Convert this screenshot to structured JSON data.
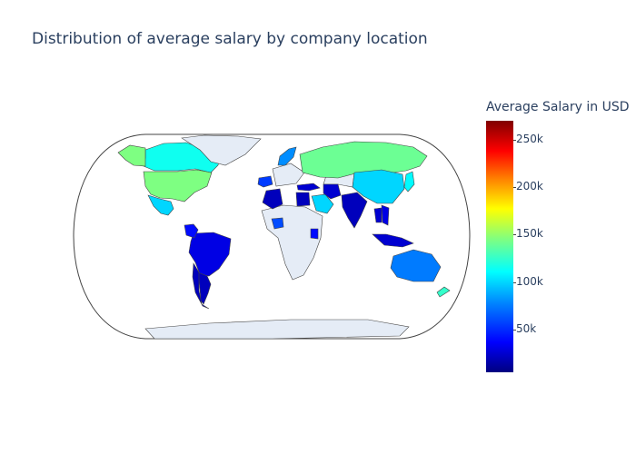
{
  "title": "Distribution of average salary by company location",
  "colorbar": {
    "title": "Average Salary in USD",
    "ticks": [
      {
        "label": "250k",
        "value": 250000
      },
      {
        "label": "200k",
        "value": 200000
      },
      {
        "label": "150k",
        "value": 150000
      },
      {
        "label": "100k",
        "value": 100000
      },
      {
        "label": "50k",
        "value": 50000
      }
    ],
    "range": [
      5000,
      270000
    ]
  },
  "chart_data": {
    "type": "choropleth",
    "title": "Distribution of average salary by company location",
    "colorbar_title": "Average Salary in USD",
    "colorscale": "jet",
    "projection": "natural earth",
    "no_data_color": "#e5ecf6",
    "regions": [
      {
        "name": "United States",
        "value": 145000
      },
      {
        "name": "Canada",
        "value": 115000
      },
      {
        "name": "Mexico",
        "value": 100000
      },
      {
        "name": "Alaska",
        "value": 145000
      },
      {
        "name": "Greenland",
        "value": null
      },
      {
        "name": "Brazil",
        "value": 30000
      },
      {
        "name": "Argentina",
        "value": 20000
      },
      {
        "name": "Chile",
        "value": 20000
      },
      {
        "name": "Colombia",
        "value": 40000
      },
      {
        "name": "Russia",
        "value": 140000
      },
      {
        "name": "China",
        "value": 100000
      },
      {
        "name": "India",
        "value": 20000
      },
      {
        "name": "Australia",
        "value": 75000
      },
      {
        "name": "New Zealand",
        "value": 125000
      },
      {
        "name": "Japan",
        "value": 110000
      },
      {
        "name": "Indonesia",
        "value": 25000
      },
      {
        "name": "Saudi Arabia",
        "value": 100000
      },
      {
        "name": "Iran",
        "value": 25000
      },
      {
        "name": "Egypt",
        "value": 20000
      },
      {
        "name": "Nigeria",
        "value": 60000
      },
      {
        "name": "Kenya",
        "value": 40000
      },
      {
        "name": "Algeria",
        "value": 20000
      },
      {
        "name": "Spain",
        "value": 55000
      },
      {
        "name": "Norway",
        "value": 80000
      },
      {
        "name": "Turkey",
        "value": 25000
      },
      {
        "name": "Vietnam",
        "value": 30000
      },
      {
        "name": "Thailand",
        "value": 25000
      }
    ]
  }
}
